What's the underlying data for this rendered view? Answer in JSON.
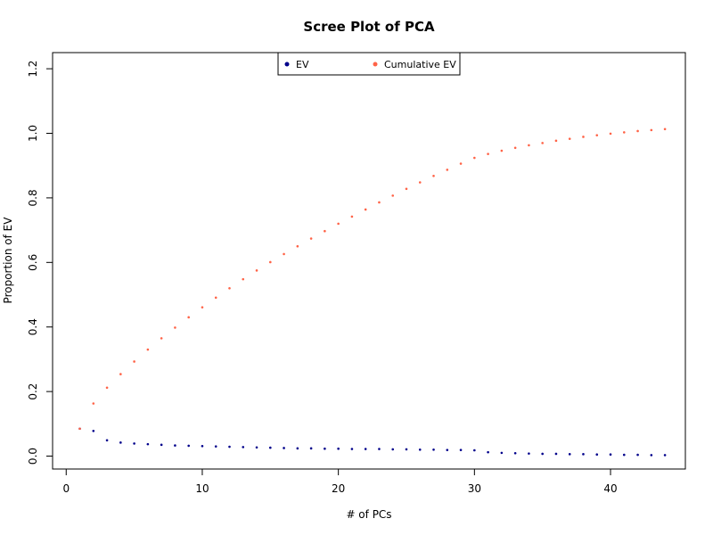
{
  "chart_data": {
    "type": "scatter",
    "title": "Scree Plot of PCA",
    "xlabel": "# of PCs",
    "ylabel": "Proportion of EV",
    "xlim": [
      -1,
      45.5
    ],
    "ylim": [
      -0.04,
      1.25
    ],
    "xticks": [
      0,
      10,
      20,
      30,
      40
    ],
    "yticks": [
      0.0,
      0.2,
      0.4,
      0.6,
      0.8,
      1.0,
      1.2
    ],
    "xtick_labels": [
      "0",
      "10",
      "20",
      "30",
      "40"
    ],
    "ytick_labels": [
      "0.0",
      "0.2",
      "0.4",
      "0.6",
      "0.8",
      "1.0",
      "1.2"
    ],
    "grid": false,
    "legend_position": "top-center",
    "x": [
      1,
      2,
      3,
      4,
      5,
      6,
      7,
      8,
      9,
      10,
      11,
      12,
      13,
      14,
      15,
      16,
      17,
      18,
      19,
      20,
      21,
      22,
      23,
      24,
      25,
      26,
      27,
      28,
      29,
      30,
      31,
      32,
      33,
      34,
      35,
      36,
      37,
      38,
      39,
      40,
      41,
      42,
      43,
      44
    ],
    "series": [
      {
        "name": "EV",
        "color": "#00008b",
        "values": [
          0.085,
          0.078,
          0.049,
          0.042,
          0.039,
          0.037,
          0.035,
          0.033,
          0.032,
          0.031,
          0.03,
          0.029,
          0.028,
          0.027,
          0.026,
          0.025,
          0.024,
          0.024,
          0.023,
          0.023,
          0.022,
          0.022,
          0.022,
          0.021,
          0.021,
          0.02,
          0.02,
          0.019,
          0.019,
          0.018,
          0.012,
          0.01,
          0.009,
          0.008,
          0.007,
          0.007,
          0.006,
          0.006,
          0.005,
          0.005,
          0.004,
          0.004,
          0.003,
          0.003
        ]
      },
      {
        "name": "Cumulative EV",
        "color": "#ff6347",
        "values": [
          0.085,
          0.163,
          0.212,
          0.254,
          0.293,
          0.33,
          0.365,
          0.398,
          0.43,
          0.461,
          0.491,
          0.52,
          0.548,
          0.575,
          0.601,
          0.626,
          0.65,
          0.674,
          0.697,
          0.72,
          0.742,
          0.764,
          0.786,
          0.807,
          0.828,
          0.848,
          0.868,
          0.887,
          0.906,
          0.924,
          0.936,
          0.946,
          0.955,
          0.963,
          0.97,
          0.977,
          0.983,
          0.989,
          0.994,
          0.999,
          1.003,
          1.007,
          1.01,
          1.013
        ]
      }
    ]
  }
}
